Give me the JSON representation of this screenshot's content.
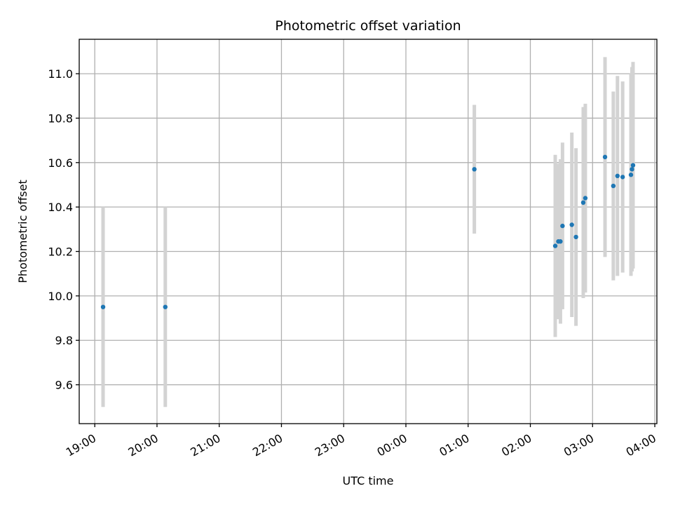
{
  "chart_data": {
    "type": "scatter",
    "title": "Photometric offset variation",
    "xlabel": "UTC time",
    "ylabel": "Photometric offset",
    "x_unit": "UTC time (HH:MM)",
    "x_ticks": [
      "19:00",
      "20:00",
      "21:00",
      "22:00",
      "23:00",
      "00:00",
      "01:00",
      "02:00",
      "03:00",
      "04:00"
    ],
    "x_ticks_rotated": true,
    "xlim": [
      "18:45",
      "04:02"
    ],
    "ylim": [
      9.425,
      11.155
    ],
    "y_ticks": [
      9.6,
      9.8,
      10.0,
      10.2,
      10.4,
      10.6,
      10.8,
      11.0
    ],
    "grid": true,
    "point_color": "#1f77b4",
    "errorbar_color": "#d3d3d3",
    "points": [
      {
        "x": "19:08",
        "y": 9.95,
        "err": 0.45
      },
      {
        "x": "20:08",
        "y": 9.95,
        "err": 0.45
      },
      {
        "x": "01:06",
        "y": 10.57,
        "err": 0.29
      },
      {
        "x": "02:24",
        "y": 10.225,
        "err": 0.41
      },
      {
        "x": "02:27",
        "y": 10.245,
        "err": 0.35
      },
      {
        "x": "02:29",
        "y": 10.245,
        "err": 0.37
      },
      {
        "x": "02:31",
        "y": 10.315,
        "err": 0.375
      },
      {
        "x": "02:40",
        "y": 10.32,
        "err": 0.415
      },
      {
        "x": "02:44",
        "y": 10.265,
        "err": 0.4
      },
      {
        "x": "02:51",
        "y": 10.42,
        "err": 0.43
      },
      {
        "x": "02:53",
        "y": 10.44,
        "err": 0.425
      },
      {
        "x": "03:12",
        "y": 10.625,
        "err": 0.45
      },
      {
        "x": "03:20",
        "y": 10.495,
        "err": 0.425
      },
      {
        "x": "03:24",
        "y": 10.54,
        "err": 0.45
      },
      {
        "x": "03:29",
        "y": 10.535,
        "err": 0.43
      },
      {
        "x": "03:37",
        "y": 10.545,
        "err": 0.455
      },
      {
        "x": "03:38",
        "y": 10.57,
        "err": 0.46
      },
      {
        "x": "03:39",
        "y": 10.588,
        "err": 0.465
      }
    ]
  }
}
